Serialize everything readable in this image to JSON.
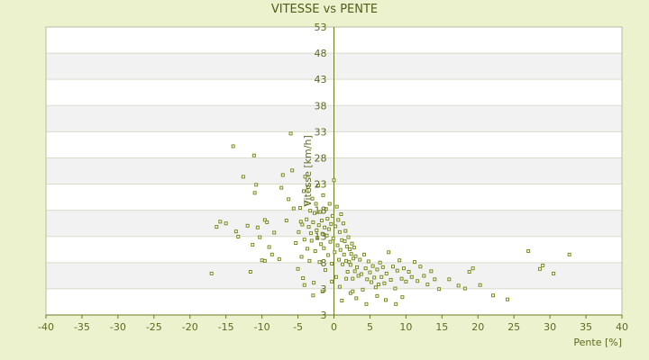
{
  "chart_data": {
    "type": "scatter",
    "title": "VITESSE vs PENTE",
    "xlabel": "Pente [%]",
    "ylabel": "Vitesse [km/h]",
    "xlim": [
      -40,
      40
    ],
    "ylim": [
      3,
      53
    ],
    "x_ticks": [
      "-40",
      "-35",
      "-30",
      "-25",
      "-20",
      "-15",
      "-10",
      "-5",
      "0",
      "5",
      "10",
      "15",
      "20",
      "25",
      "30",
      "35",
      "40"
    ],
    "y_ticks": [
      "3",
      "3",
      "8",
      "13",
      "18",
      "23",
      "28",
      "33",
      "38",
      "43",
      "48",
      "53"
    ],
    "grid": "horizontal alternating bands",
    "marker_color": "#7A8C1E",
    "points": [
      [
        -17,
        10.2
      ],
      [
        -16.3,
        18.3
      ],
      [
        -15.8,
        19.2
      ],
      [
        -15,
        18.9
      ],
      [
        -14,
        32.3
      ],
      [
        -13.6,
        17.5
      ],
      [
        -13.3,
        16.6
      ],
      [
        -12.6,
        27
      ],
      [
        -12,
        18.5
      ],
      [
        -11.6,
        10.5
      ],
      [
        -11.3,
        15.2
      ],
      [
        -11.1,
        30.7
      ],
      [
        -11,
        24.2
      ],
      [
        -10.8,
        25.6
      ],
      [
        -10.6,
        18.2
      ],
      [
        -10.3,
        16.5
      ],
      [
        -10,
        12.5
      ],
      [
        -9.6,
        12.4
      ],
      [
        -9.6,
        19.5
      ],
      [
        -9.3,
        19.1
      ],
      [
        -9,
        14.8
      ],
      [
        -8.6,
        13.5
      ],
      [
        -8.3,
        17.3
      ],
      [
        -7.6,
        12.7
      ],
      [
        -7.3,
        25.1
      ],
      [
        -7.1,
        27.3
      ],
      [
        -6.6,
        19.4
      ],
      [
        -6.3,
        23.1
      ],
      [
        -6,
        34.5
      ],
      [
        -5.8,
        28.1
      ],
      [
        -5.6,
        21.5
      ],
      [
        -5.3,
        15.5
      ],
      [
        -5,
        11
      ],
      [
        -4.9,
        17.4
      ],
      [
        -4.7,
        21.6
      ],
      [
        -4.6,
        19.2
      ],
      [
        -4.5,
        13.1
      ],
      [
        -4.4,
        18.7
      ],
      [
        -4.3,
        9.4
      ],
      [
        -4.2,
        24.5
      ],
      [
        -4.1,
        16.1
      ],
      [
        -4,
        27
      ],
      [
        -3.9,
        22.4
      ],
      [
        -3.8,
        19.6
      ],
      [
        -3.7,
        14.5
      ],
      [
        -3.6,
        25.2
      ],
      [
        -3.5,
        18.3
      ],
      [
        -3.4,
        12.4
      ],
      [
        -3.3,
        21.1
      ],
      [
        -3.2,
        17.2
      ],
      [
        -3.1,
        15.9
      ],
      [
        -3,
        23.2
      ],
      [
        -2.9,
        19.1
      ],
      [
        -2.8,
        8.6
      ],
      [
        -2.7,
        20.7
      ],
      [
        -2.6,
        14.1
      ],
      [
        -2.5,
        22.3
      ],
      [
        -2.4,
        17.7
      ],
      [
        -2.3,
        16.4
      ],
      [
        -2.2,
        25.5
      ],
      [
        -2.1,
        18.6
      ],
      [
        -2,
        12.2
      ],
      [
        -1.9,
        20.9
      ],
      [
        -1.8,
        15.3
      ],
      [
        -1.7,
        19.4
      ],
      [
        -1.6,
        17.1
      ],
      [
        -1.5,
        23.8
      ],
      [
        -1.4,
        14.6
      ],
      [
        -1.3,
        18.2
      ],
      [
        -1.2,
        10.8
      ],
      [
        -1.1,
        21.4
      ],
      [
        -1,
        16.8
      ],
      [
        -0.9,
        19.7
      ],
      [
        -0.8,
        13.4
      ],
      [
        -0.7,
        17.9
      ],
      [
        -0.6,
        22.3
      ],
      [
        -0.5,
        15.7
      ],
      [
        -0.4,
        18.8
      ],
      [
        -0.3,
        11.9
      ],
      [
        -0.2,
        20.2
      ],
      [
        -0.1,
        16.3
      ],
      [
        0,
        26.4
      ],
      [
        0.1,
        13.9
      ],
      [
        0.2,
        18.4
      ],
      [
        0.3,
        9.6
      ],
      [
        0.4,
        21.8
      ],
      [
        0.5,
        15.1
      ],
      [
        0.6,
        19.5
      ],
      [
        0.7,
        12.6
      ],
      [
        0.8,
        17.4
      ],
      [
        0.9,
        14.3
      ],
      [
        1,
        20.5
      ],
      [
        1.1,
        16
      ],
      [
        1.2,
        11.8
      ],
      [
        1.3,
        18.9
      ],
      [
        1.4,
        13.5
      ],
      [
        1.5,
        15.8
      ],
      [
        1.6,
        17.6
      ],
      [
        1.7,
        12.4
      ],
      [
        1.8,
        14.9
      ],
      [
        1.9,
        10.5
      ],
      [
        2,
        16.5
      ],
      [
        2.1,
        12.2
      ],
      [
        2.2,
        14.4
      ],
      [
        2.3,
        11.7
      ],
      [
        2.4,
        13.6
      ],
      [
        2.5,
        15.4
      ],
      [
        2.6,
        9.3
      ],
      [
        2.7,
        12.8
      ],
      [
        2.8,
        14.7
      ],
      [
        2.9,
        10.6
      ],
      [
        3,
        13.2
      ],
      [
        3.2,
        11.3
      ],
      [
        3.4,
        9.8
      ],
      [
        3.6,
        12.6
      ],
      [
        3.8,
        10.1
      ],
      [
        4,
        7.4
      ],
      [
        4.2,
        13.5
      ],
      [
        4.4,
        11.1
      ],
      [
        4.6,
        9.2
      ],
      [
        4.8,
        12.3
      ],
      [
        5,
        10.4
      ],
      [
        5.2,
        8.7
      ],
      [
        5.4,
        11.5
      ],
      [
        5.6,
        9.5
      ],
      [
        5.8,
        7.8
      ],
      [
        6,
        10.9
      ],
      [
        6.2,
        8.3
      ],
      [
        6.4,
        12.1
      ],
      [
        6.6,
        9.6
      ],
      [
        6.8,
        11.3
      ],
      [
        7,
        8.5
      ],
      [
        7.3,
        10.2
      ],
      [
        7.6,
        13.9
      ],
      [
        7.9,
        9.1
      ],
      [
        8.2,
        11.4
      ],
      [
        8.5,
        7.6
      ],
      [
        8.8,
        10.7
      ],
      [
        9.1,
        12.5
      ],
      [
        9.4,
        9.3
      ],
      [
        9.7,
        11.1
      ],
      [
        10,
        8.8
      ],
      [
        10.4,
        10.5
      ],
      [
        10.8,
        9.6
      ],
      [
        11.2,
        12.2
      ],
      [
        11.6,
        8.9
      ],
      [
        12,
        11.4
      ],
      [
        12.5,
        9.8
      ],
      [
        13,
        8.3
      ],
      [
        13.5,
        10.6
      ],
      [
        14,
        9.2
      ],
      [
        14.6,
        7.5
      ],
      [
        16,
        9.2
      ],
      [
        17.3,
        8.1
      ],
      [
        18.2,
        7.6
      ],
      [
        18.8,
        10.5
      ],
      [
        19.3,
        11.1
      ],
      [
        20.3,
        8.2
      ],
      [
        22.1,
        6.4
      ],
      [
        24.1,
        5.7
      ],
      [
        27,
        14.1
      ],
      [
        28.6,
        11
      ],
      [
        29,
        11.6
      ],
      [
        30.5,
        10.2
      ],
      [
        32.7,
        13.5
      ],
      [
        1.1,
        5.5
      ],
      [
        2.3,
        6.8
      ],
      [
        3.1,
        5.9
      ],
      [
        4.5,
        4.9
      ],
      [
        6,
        6.3
      ],
      [
        7.2,
        5.6
      ],
      [
        8.6,
        4.9
      ],
      [
        9.5,
        6.1
      ],
      [
        -1.6,
        7.1
      ],
      [
        -2.9,
        6.4
      ],
      [
        -4.1,
        8.2
      ],
      [
        -0.3,
        8.8
      ],
      [
        0.8,
        7.9
      ],
      [
        1.7,
        9.3
      ],
      [
        2.6,
        7.1
      ]
    ]
  }
}
